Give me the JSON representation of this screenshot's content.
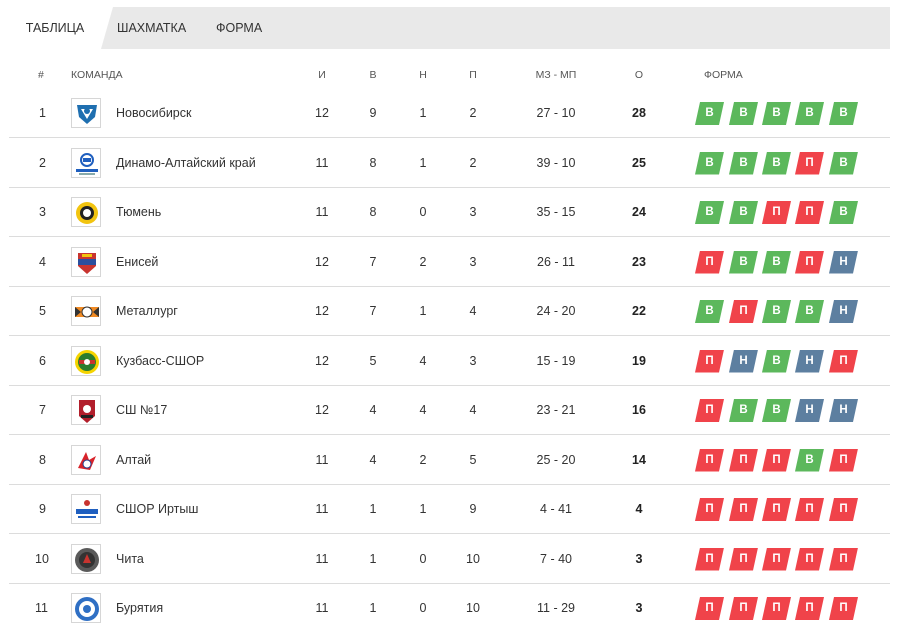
{
  "tabs": [
    {
      "label": "ТАБЛИЦА",
      "active": true
    },
    {
      "label": "ШАХМАТКА",
      "active": false
    },
    {
      "label": "ФОРМА",
      "active": false
    }
  ],
  "headers": {
    "pos": "#",
    "team": "КОМАНДА",
    "played": "И",
    "won": "В",
    "drawn": "Н",
    "lost": "П",
    "goals": "МЗ - МП",
    "points": "О",
    "form": "ФОРМА"
  },
  "rows": [
    {
      "pos": "1",
      "team": "Новосибирск",
      "logo": "novosibirsk-logo-icon",
      "played": "12",
      "won": "9",
      "drawn": "1",
      "lost": "2",
      "goals": "27 - 10",
      "points": "28",
      "form": [
        "В",
        "В",
        "В",
        "В",
        "В"
      ]
    },
    {
      "pos": "2",
      "team": "Динамо-Алтайский край",
      "logo": "dinamo-altai-logo-icon",
      "played": "11",
      "won": "8",
      "drawn": "1",
      "lost": "2",
      "goals": "39 - 10",
      "points": "25",
      "form": [
        "В",
        "В",
        "В",
        "П",
        "В"
      ]
    },
    {
      "pos": "3",
      "team": "Тюмень",
      "logo": "tyumen-logo-icon",
      "played": "11",
      "won": "8",
      "drawn": "0",
      "lost": "3",
      "goals": "35 - 15",
      "points": "24",
      "form": [
        "В",
        "В",
        "П",
        "П",
        "В"
      ]
    },
    {
      "pos": "4",
      "team": "Енисей",
      "logo": "enisey-logo-icon",
      "played": "12",
      "won": "7",
      "drawn": "2",
      "lost": "3",
      "goals": "26 - 11",
      "points": "23",
      "form": [
        "П",
        "В",
        "В",
        "П",
        "Н"
      ]
    },
    {
      "pos": "5",
      "team": "Металлург",
      "logo": "metallurg-logo-icon",
      "played": "12",
      "won": "7",
      "drawn": "1",
      "lost": "4",
      "goals": "24 - 20",
      "points": "22",
      "form": [
        "В",
        "П",
        "В",
        "В",
        "Н"
      ]
    },
    {
      "pos": "6",
      "team": "Кузбасс-СШОР",
      "logo": "kuzbass-logo-icon",
      "played": "12",
      "won": "5",
      "drawn": "4",
      "lost": "3",
      "goals": "15 - 19",
      "points": "19",
      "form": [
        "П",
        "Н",
        "В",
        "Н",
        "П"
      ]
    },
    {
      "pos": "7",
      "team": "СШ №17",
      "logo": "sh17-logo-icon",
      "played": "12",
      "won": "4",
      "drawn": "4",
      "lost": "4",
      "goals": "23 - 21",
      "points": "16",
      "form": [
        "П",
        "В",
        "В",
        "Н",
        "Н"
      ]
    },
    {
      "pos": "8",
      "team": "Алтай",
      "logo": "altai-logo-icon",
      "played": "11",
      "won": "4",
      "drawn": "2",
      "lost": "5",
      "goals": "25 - 20",
      "points": "14",
      "form": [
        "П",
        "П",
        "П",
        "В",
        "П"
      ]
    },
    {
      "pos": "9",
      "team": "СШОР Иртыш",
      "logo": "irtysh-logo-icon",
      "played": "11",
      "won": "1",
      "drawn": "1",
      "lost": "9",
      "goals": "4 - 41",
      "points": "4",
      "form": [
        "П",
        "П",
        "П",
        "П",
        "П"
      ]
    },
    {
      "pos": "10",
      "team": "Чита",
      "logo": "chita-logo-icon",
      "played": "11",
      "won": "1",
      "drawn": "0",
      "lost": "10",
      "goals": "7 - 40",
      "points": "3",
      "form": [
        "П",
        "П",
        "П",
        "П",
        "П"
      ]
    },
    {
      "pos": "11",
      "team": "Бурятия",
      "logo": "buryatia-logo-icon",
      "played": "11",
      "won": "1",
      "drawn": "0",
      "lost": "10",
      "goals": "11 - 29",
      "points": "3",
      "form": [
        "П",
        "П",
        "П",
        "П",
        "П"
      ]
    }
  ],
  "colors": {
    "win": "#5cb85c",
    "loss": "#f0434a",
    "draw": "#5d7fa0",
    "tabbar": "#e9e9e9",
    "divider": "#dcdcdc"
  }
}
